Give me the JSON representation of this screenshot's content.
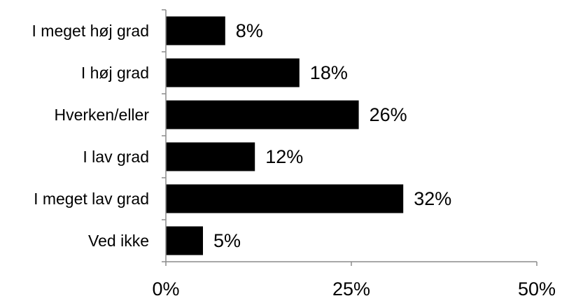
{
  "chart_data": {
    "type": "bar",
    "orientation": "horizontal",
    "categories": [
      "I meget høj grad",
      "I høj grad",
      "Hverken/eller",
      "I lav grad",
      "I meget lav grad",
      "Ved ikke"
    ],
    "values": [
      8,
      18,
      26,
      12,
      32,
      5
    ],
    "value_labels": [
      "8%",
      "18%",
      "26%",
      "12%",
      "32%",
      "5%"
    ],
    "x_ticks": [
      0,
      25,
      50
    ],
    "x_tick_labels": [
      "0%",
      "25%",
      "50%"
    ],
    "xlim": [
      0,
      50
    ],
    "title": "",
    "xlabel": "",
    "ylabel": "",
    "grid": false,
    "legend": "none",
    "bar_color": "#000000"
  }
}
